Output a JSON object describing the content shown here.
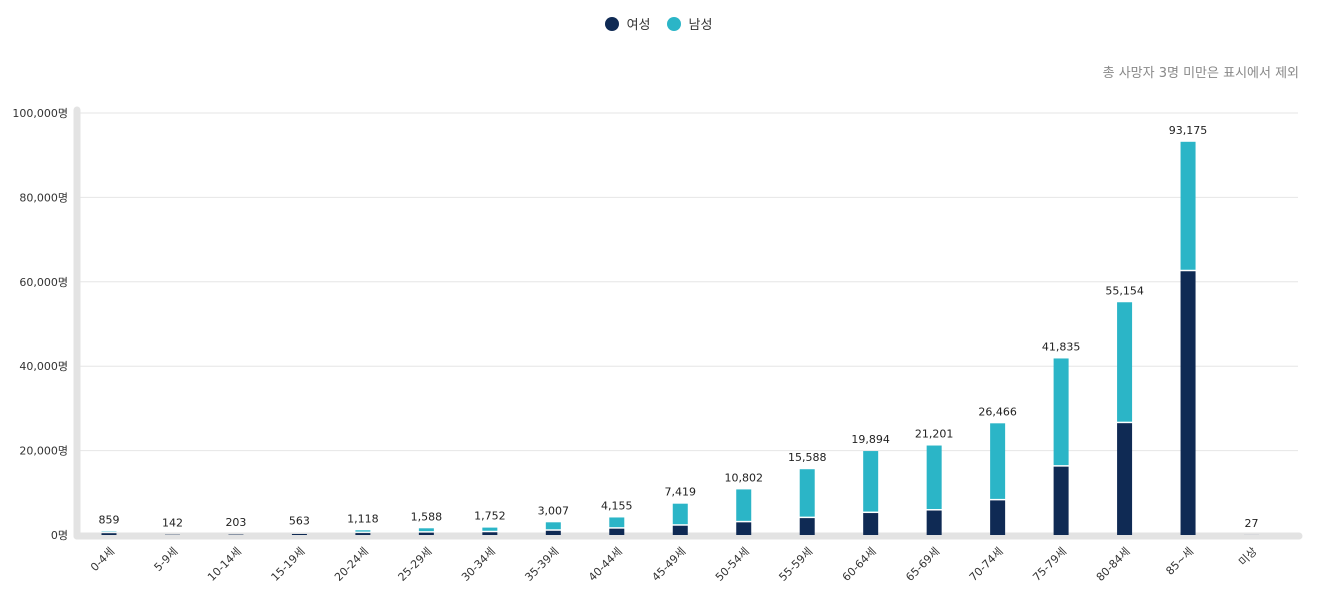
{
  "legend": {
    "female_label": "여성",
    "male_label": "남성"
  },
  "note": "총 사망자 3명 미만은 표시에서 제외",
  "colors": {
    "female": "#0f2a54",
    "male": "#2bb5c7",
    "grid": "#e6e6e6",
    "axis": "#e3e3e3"
  },
  "chart_data": {
    "type": "bar",
    "stacked": true,
    "categories": [
      "0-4세",
      "5-9세",
      "10-14세",
      "15-19세",
      "20-24세",
      "25-29세",
      "30-34세",
      "35-39세",
      "40-44세",
      "45-49세",
      "50-54세",
      "55-59세",
      "60-64세",
      "65-69세",
      "70-74세",
      "75-79세",
      "80-84세",
      "85~세",
      "미상"
    ],
    "series": [
      {
        "name": "여성",
        "values": [
          420,
          70,
          100,
          240,
          450,
          560,
          650,
          1000,
          1500,
          2200,
          3000,
          4000,
          5200,
          5800,
          8200,
          16200,
          26500,
          62500,
          13
        ]
      },
      {
        "name": "남성",
        "values": [
          439,
          72,
          103,
          323,
          668,
          1028,
          1102,
          2007,
          2655,
          5219,
          7802,
          11588,
          14694,
          15401,
          18266,
          25635,
          28654,
          30675,
          14
        ]
      }
    ],
    "totals": [
      "859",
      "142",
      "203",
      "563",
      "1,118",
      "1,588",
      "1,752",
      "3,007",
      "4,155",
      "7,419",
      "10,802",
      "15,588",
      "19,894",
      "21,201",
      "26,466",
      "41,835",
      "55,154",
      "93,175",
      "27"
    ],
    "y_ticks": [
      "0명",
      "20,000명",
      "40,000명",
      "60,000명",
      "80,000명",
      "100,000명"
    ],
    "y_tick_values": [
      0,
      20000,
      40000,
      60000,
      80000,
      100000
    ],
    "ylim": [
      0,
      100000
    ],
    "grid": true,
    "legend_position": "top-center"
  }
}
